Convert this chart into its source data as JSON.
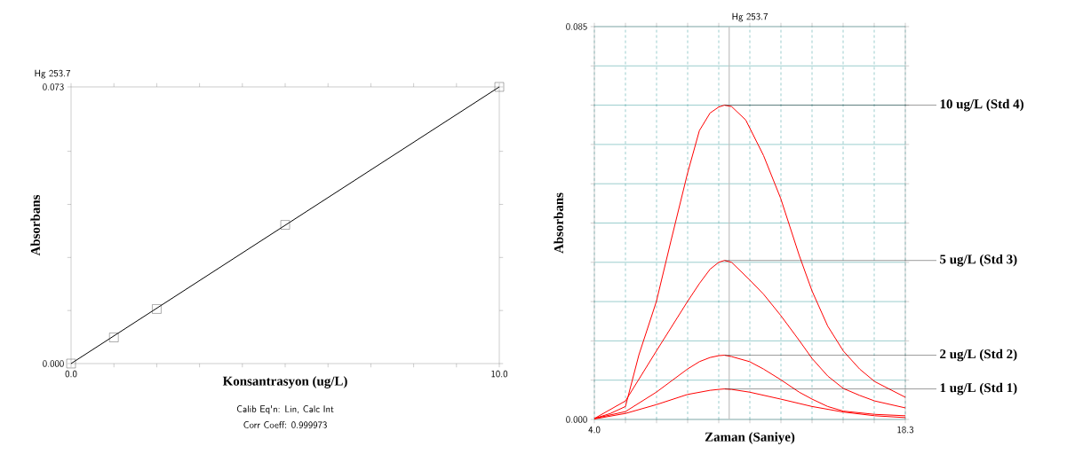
{
  "chart_data": [
    {
      "type": "scatter",
      "title": "Hg 253.7",
      "xlabel": "Konsantrasyon (ug/L)",
      "ylabel": "Absorbans",
      "xlim": [
        0,
        10
      ],
      "ylim": [
        0,
        0.073
      ],
      "xticks": [
        {
          "value": 0,
          "label": "0.0"
        },
        {
          "value": 1,
          "label": null
        },
        {
          "value": 2,
          "label": null
        },
        {
          "value": 3,
          "label": null
        },
        {
          "value": 4,
          "label": null
        },
        {
          "value": 5,
          "label": null
        },
        {
          "value": 6,
          "label": null
        },
        {
          "value": 7,
          "label": null
        },
        {
          "value": 8,
          "label": null
        },
        {
          "value": 9,
          "label": null
        },
        {
          "value": 10,
          "label": "10.0"
        }
      ],
      "yticks": [
        {
          "value": 0,
          "label": "0.000"
        },
        {
          "value": 0.014,
          "label": null
        },
        {
          "value": 0.028,
          "label": null
        },
        {
          "value": 0.042,
          "label": null
        },
        {
          "value": 0.056,
          "label": null
        },
        {
          "value": 0.073,
          "label": "0.073"
        }
      ],
      "series": [
        {
          "type": "scatter",
          "marker": "square",
          "color": "#333333",
          "x": [
            0,
            1,
            2,
            5,
            10
          ],
          "values": [
            0,
            0.0069,
            0.0144,
            0.0366,
            0.073
          ]
        },
        {
          "type": "line",
          "color": "#000000",
          "x": [
            0,
            10
          ],
          "values": [
            0,
            0.073
          ]
        }
      ],
      "annotations": [
        "Calib Eq'n: Lin, Calc Int",
        "Corr Coeff: 0.999973"
      ]
    },
    {
      "type": "line",
      "title": "Hg 253.7",
      "xlabel": "Zaman (Saniye)",
      "ylabel": "Absorbans",
      "grid": true,
      "xlim": [
        4.0,
        18.3
      ],
      "ylim": [
        0,
        0.085
      ],
      "xticks": [
        {
          "value": 4.0,
          "label": "4.0"
        },
        {
          "value": 5.43,
          "label": null
        },
        {
          "value": 6.86,
          "label": null
        },
        {
          "value": 8.29,
          "label": null
        },
        {
          "value": 9.72,
          "label": null
        },
        {
          "value": 11.15,
          "label": null
        },
        {
          "value": 12.58,
          "label": null
        },
        {
          "value": 14.01,
          "label": null
        },
        {
          "value": 15.44,
          "label": null
        },
        {
          "value": 16.87,
          "label": null
        },
        {
          "value": 18.3,
          "label": "18.3"
        }
      ],
      "yticks": [
        {
          "value": 0,
          "label": "0.000"
        },
        {
          "value": 0.0085,
          "label": null
        },
        {
          "value": 0.017,
          "label": null
        },
        {
          "value": 0.0255,
          "label": null
        },
        {
          "value": 0.034,
          "label": null
        },
        {
          "value": 0.0425,
          "label": null
        },
        {
          "value": 0.051,
          "label": null
        },
        {
          "value": 0.0595,
          "label": null
        },
        {
          "value": 0.068,
          "label": null
        },
        {
          "value": 0.0765,
          "label": null
        },
        {
          "value": 0.085,
          "label": "0.085"
        }
      ],
      "ref_lines": [
        {
          "axis": "x",
          "value": 10.2,
          "color": "#c0c0c0"
        }
      ],
      "series": [
        {
          "name": "10 ug/L (Std 4)",
          "color": "#ff0000",
          "x": [
            4.0,
            4.74,
            5.43,
            6.05,
            6.85,
            7.52,
            8.28,
            8.83,
            9.32,
            9.72,
            9.98,
            10.31,
            10.96,
            11.78,
            12.57,
            13.42,
            14.01,
            14.73,
            15.45,
            16.2,
            16.89,
            17.51,
            18.3
          ],
          "values": [
            0.0002,
            0.0013,
            0.0028,
            0.014,
            0.0255,
            0.0386,
            0.0532,
            0.0625,
            0.0663,
            0.0676,
            0.068,
            0.0677,
            0.0648,
            0.0571,
            0.0478,
            0.0355,
            0.0278,
            0.0202,
            0.0148,
            0.0109,
            0.0082,
            0.0067,
            0.0048
          ]
        },
        {
          "name": "5 ug/L (Std 3)",
          "color": "#ff0000",
          "x": [
            4.0,
            5.43,
            6.85,
            8.28,
            8.83,
            9.32,
            9.72,
            9.98,
            10.31,
            11.14,
            11.78,
            12.57,
            13.42,
            14.01,
            14.73,
            15.45,
            16.2,
            16.89,
            18.3
          ],
          "values": [
            0.0002,
            0.004,
            0.0148,
            0.0255,
            0.0294,
            0.0325,
            0.034,
            0.0344,
            0.034,
            0.0302,
            0.0271,
            0.0225,
            0.0171,
            0.0132,
            0.0094,
            0.0067,
            0.0052,
            0.004,
            0.0025
          ]
        },
        {
          "name": "2 ug/L (Std 2)",
          "color": "#ff0000",
          "x": [
            4.0,
            5.43,
            6.85,
            8.28,
            8.83,
            9.32,
            9.72,
            9.98,
            10.31,
            11.14,
            11.78,
            12.57,
            13.42,
            14.01,
            14.73,
            15.45,
            16.89,
            18.3
          ],
          "values": [
            0.0002,
            0.0017,
            0.0059,
            0.0109,
            0.0125,
            0.0134,
            0.0138,
            0.0139,
            0.0136,
            0.0125,
            0.0109,
            0.0086,
            0.0059,
            0.0044,
            0.0028,
            0.0018,
            0.0011,
            0.0008
          ]
        },
        {
          "name": "1 ug/L (Std 1)",
          "color": "#ff0000",
          "x": [
            4.0,
            5.43,
            6.85,
            8.28,
            9.32,
            9.72,
            9.98,
            10.31,
            11.14,
            12.57,
            14.01,
            15.45,
            16.89,
            18.3
          ],
          "values": [
            0.0001,
            0.0013,
            0.0032,
            0.0054,
            0.0063,
            0.0065,
            0.0066,
            0.0065,
            0.0059,
            0.0044,
            0.0028,
            0.0016,
            0.0008,
            0.0004
          ]
        }
      ]
    }
  ]
}
